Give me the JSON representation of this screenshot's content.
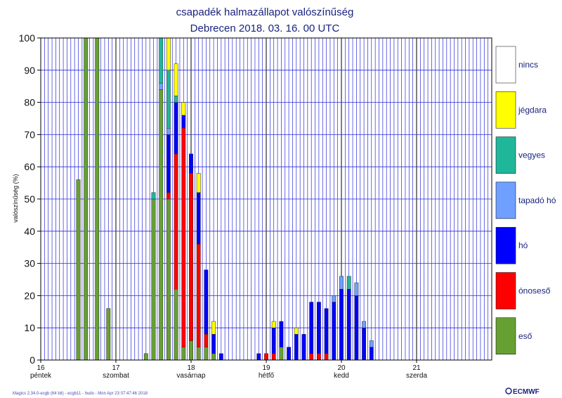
{
  "chart_data": {
    "type": "bar",
    "title": "csapadék halmazállapot valószínűség",
    "subtitle": "Debrecen 2018. 03. 16. 00 UTC",
    "ylabel": "valószínűség (%)",
    "ylim": [
      0,
      100
    ],
    "yticks": [
      0,
      10,
      20,
      30,
      40,
      50,
      60,
      70,
      80,
      90,
      100
    ],
    "grid": true,
    "legend_position": "right",
    "x_day_ticks": [
      {
        "day": "16",
        "weekday": "péntek"
      },
      {
        "day": "17",
        "weekday": "szombat"
      },
      {
        "day": "18",
        "weekday": "vasárnap"
      },
      {
        "day": "19",
        "weekday": "hétfő"
      },
      {
        "day": "20",
        "weekday": "kedd"
      },
      {
        "day": "21",
        "weekday": "szerda"
      }
    ],
    "x_unit": "6-hour step from 2018-03-16 00 UTC",
    "categories": [
      "eső",
      "ónoseső",
      "hó",
      "tapadó hó",
      "vegyes",
      "jégdara",
      "nincs"
    ],
    "colors": {
      "eső": "#66a032",
      "ónoseső": "#ff0000",
      "hó": "#0000ff",
      "tapadó hó": "#6fa0ff",
      "vegyes": "#1fb79a",
      "jégdara": "#ffff00",
      "nincs": "#ffffff"
    },
    "stacks": [
      {
        "step": 10,
        "eső": 56
      },
      {
        "step": 12,
        "eső": 100
      },
      {
        "step": 15,
        "eső": 100
      },
      {
        "step": 18,
        "eső": 16
      },
      {
        "step": 28,
        "eső": 2
      },
      {
        "step": 30,
        "eső": 50,
        "vegyes": 2
      },
      {
        "step": 32,
        "eső": 84,
        "tapadó hó": 2,
        "vegyes": 14
      },
      {
        "step": 34,
        "eső": 50,
        "ónoseső": 2,
        "hó": 18,
        "tapadó hó": 2,
        "vegyes": 18,
        "jégdara": 10
      },
      {
        "step": 36,
        "eső": 22,
        "ónoseső": 42,
        "hó": 16,
        "vegyes": 2,
        "jégdara": 10
      },
      {
        "step": 38,
        "eső": 4,
        "ónoseső": 68,
        "hó": 4,
        "jégdara": 4
      },
      {
        "step": 40,
        "eső": 6,
        "ónoseső": 52,
        "hó": 6
      },
      {
        "step": 42,
        "eső": 4,
        "ónoseső": 32,
        "hó": 16,
        "jégdara": 6
      },
      {
        "step": 44,
        "eső": 4,
        "ónoseső": 4,
        "hó": 20
      },
      {
        "step": 46,
        "eső": 2,
        "hó": 6,
        "jégdara": 4
      },
      {
        "step": 48,
        "hó": 2
      },
      {
        "step": 58,
        "hó": 2
      },
      {
        "step": 60,
        "ónoseső": 2
      },
      {
        "step": 62,
        "ónoseső": 2,
        "hó": 8,
        "jégdara": 2
      },
      {
        "step": 64,
        "eső": 4,
        "hó": 8
      },
      {
        "step": 66,
        "hó": 4
      },
      {
        "step": 68,
        "hó": 8,
        "jégdara": 2
      },
      {
        "step": 70,
        "hó": 8
      },
      {
        "step": 72,
        "ónoseső": 2,
        "hó": 16
      },
      {
        "step": 74,
        "ónoseső": 2,
        "hó": 16
      },
      {
        "step": 76,
        "ónoseső": 2,
        "hó": 14
      },
      {
        "step": 78,
        "hó": 18,
        "tapadó hó": 2
      },
      {
        "step": 80,
        "hó": 22,
        "tapadó hó": 4
      },
      {
        "step": 82,
        "hó": 22,
        "vegyes": 4
      },
      {
        "step": 84,
        "hó": 20,
        "tapadó hó": 4
      },
      {
        "step": 86,
        "hó": 10,
        "tapadó hó": 2
      },
      {
        "step": 88,
        "hó": 4,
        "tapadó hó": 2
      }
    ]
  },
  "footer": {
    "left": "Magics 2.34.0-ecgb (64 bit) - ecgb11 - hudo - Mon Apr 23 07:47:46 2018",
    "right": "ECMWF"
  }
}
